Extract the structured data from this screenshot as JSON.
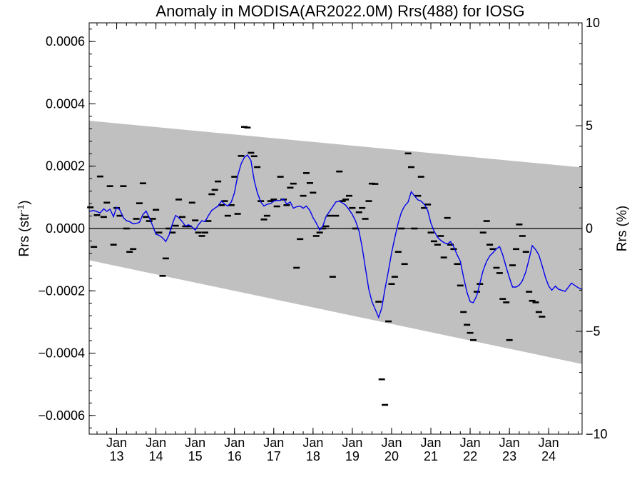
{
  "chart_data": {
    "type": "line",
    "title": "Anomaly in MODISA(AR2022.0M) Rrs(488) for IOSG",
    "ylabel_left_main": "Rrs (str",
    "ylabel_left_sup": "-1",
    "ylabel_left_close": ")",
    "ylabel_right": "Rrs (%)",
    "xlim": [
      2012.3,
      2024.85
    ],
    "ylim_left": [
      -0.00066,
      0.00066
    ],
    "ylim_right": [
      -10,
      10
    ],
    "left_ticks": [
      {
        "v": -0.0006,
        "t": "−0.0006"
      },
      {
        "v": -0.0004,
        "t": "−0.0004"
      },
      {
        "v": -0.0002,
        "t": "−0.0002"
      },
      {
        "v": 0,
        "t": "0.0000"
      },
      {
        "v": 0.0002,
        "t": "0.0002"
      },
      {
        "v": 0.0004,
        "t": "0.0004"
      },
      {
        "v": 0.0006,
        "t": "0.0006"
      }
    ],
    "right_ticks": [
      {
        "v": -10,
        "t": "−10"
      },
      {
        "v": -5,
        "t": "−5"
      },
      {
        "v": 0,
        "t": "0"
      },
      {
        "v": 5,
        "t": "5"
      },
      {
        "v": 10,
        "t": "10"
      }
    ],
    "x_ticks": [
      {
        "x": 2013,
        "month": "Jan",
        "year": "13"
      },
      {
        "x": 2014,
        "month": "Jan",
        "year": "14"
      },
      {
        "x": 2015,
        "month": "Jan",
        "year": "15"
      },
      {
        "x": 2016,
        "month": "Jan",
        "year": "16"
      },
      {
        "x": 2017,
        "month": "Jan",
        "year": "17"
      },
      {
        "x": 2018,
        "month": "Jan",
        "year": "18"
      },
      {
        "x": 2019,
        "month": "Jan",
        "year": "19"
      },
      {
        "x": 2020,
        "month": "Jan",
        "year": "20"
      },
      {
        "x": 2021,
        "month": "Jan",
        "year": "21"
      },
      {
        "x": 2022,
        "month": "Jan",
        "year": "22"
      },
      {
        "x": 2023,
        "month": "Jan",
        "year": "23"
      },
      {
        "x": 2024,
        "month": "Jan",
        "year": "24"
      }
    ],
    "band": {
      "x": [
        2012.3,
        2024.85
      ],
      "upper": [
        0.000346,
        0.000196
      ],
      "lower": [
        -0.000102,
        -0.000435
      ]
    },
    "zero_line": 0,
    "points": [
      [
        2012.33,
        6.8e-05
      ],
      [
        2012.42,
        -5.9e-05
      ],
      [
        2012.5,
        4.3e-05
      ],
      [
        2012.58,
        0.000167
      ],
      [
        2012.67,
        3.7e-05
      ],
      [
        2012.75,
        8.3e-05
      ],
      [
        2012.83,
        0.000136
      ],
      [
        2012.92,
        -5.2e-05
      ],
      [
        2013.0,
        6.6e-05
      ],
      [
        2013.08,
        4.1e-05
      ],
      [
        2013.17,
        0.000136
      ],
      [
        2013.25,
        0.0
      ],
      [
        2013.33,
        -7.5e-05
      ],
      [
        2013.42,
        -6.6e-05
      ],
      [
        2013.5,
        3.1e-05
      ],
      [
        2013.58,
        8.1e-05
      ],
      [
        2013.67,
        0.000145
      ],
      [
        2013.75,
        3.7e-05
      ],
      [
        2013.83,
        2.4e-05
      ],
      [
        2013.92,
        3.1e-05
      ],
      [
        2014.0,
        6e-05
      ],
      [
        2014.08,
        -1.3e-05
      ],
      [
        2014.17,
        -0.000152
      ],
      [
        2014.25,
        -9.6e-05
      ],
      [
        2014.33,
        0.0
      ],
      [
        2014.42,
        -1.3e-05
      ],
      [
        2014.5,
        9e-06
      ],
      [
        2014.58,
        9.3e-05
      ],
      [
        2014.67,
        3.7e-05
      ],
      [
        2014.75,
        7e-06
      ],
      [
        2014.83,
        7e-06
      ],
      [
        2014.92,
        8.3e-05
      ],
      [
        2015.0,
        2.6e-05
      ],
      [
        2015.08,
        -1.3e-05
      ],
      [
        2015.17,
        -2.4e-05
      ],
      [
        2015.25,
        -1.3e-05
      ],
      [
        2015.33,
        2.4e-05
      ],
      [
        2015.42,
        0.00011
      ],
      [
        2015.5,
        0.000124
      ],
      [
        2015.58,
        0.000151
      ],
      [
        2015.67,
        7.5e-05
      ],
      [
        2015.75,
        8.8e-05
      ],
      [
        2015.83,
        4.1e-05
      ],
      [
        2015.92,
        7.5e-05
      ],
      [
        2016.0,
        0.000166
      ],
      [
        2016.08,
        4.7e-05
      ],
      [
        2016.17,
        0.000233
      ],
      [
        2016.25,
        0.000326
      ],
      [
        2016.33,
        0.000324
      ],
      [
        2016.42,
        0.000243
      ],
      [
        2016.5,
        0.000232
      ],
      [
        2016.58,
        0.000197
      ],
      [
        2016.67,
        8.8e-05
      ],
      [
        2016.75,
        2.9e-05
      ],
      [
        2016.83,
        4.1e-05
      ],
      [
        2016.92,
        8.8e-05
      ],
      [
        2017.0,
        9.3e-05
      ],
      [
        2017.08,
        7.1e-05
      ],
      [
        2017.17,
        0.000166
      ],
      [
        2017.25,
        9.3e-05
      ],
      [
        2017.33,
        7.5e-05
      ],
      [
        2017.42,
        0.000131
      ],
      [
        2017.5,
        0.000144
      ],
      [
        2017.58,
        -0.000126
      ],
      [
        2017.67,
        -3.4e-05
      ],
      [
        2017.75,
        0.000105
      ],
      [
        2017.83,
        0.000178
      ],
      [
        2017.92,
        0.000146
      ],
      [
        2018.0,
        0.000115
      ],
      [
        2018.08,
        -2.4e-05
      ],
      [
        2018.17,
        -1.3e-05
      ],
      [
        2018.25,
        0.0
      ],
      [
        2018.33,
        7e-06
      ],
      [
        2018.42,
        4.1e-05
      ],
      [
        2018.5,
        -0.000155
      ],
      [
        2018.58,
        4.1e-05
      ],
      [
        2018.67,
        0.000183
      ],
      [
        2018.75,
        8.8e-05
      ],
      [
        2018.83,
        9.3e-05
      ],
      [
        2018.92,
        0.000105
      ],
      [
        2019.0,
        6.6e-05
      ],
      [
        2019.08,
        0.0
      ],
      [
        2019.17,
        5.2e-05
      ],
      [
        2019.25,
        6.6e-05
      ],
      [
        2019.33,
        3.1e-05
      ],
      [
        2019.42,
        8.8e-05
      ],
      [
        2019.5,
        0.000144
      ],
      [
        2019.58,
        0.000143
      ],
      [
        2019.67,
        -0.000235
      ],
      [
        2019.75,
        -0.000484
      ],
      [
        2019.83,
        -0.000566
      ],
      [
        2019.92,
        -0.000298
      ],
      [
        2020.0,
        -0.000178
      ],
      [
        2020.08,
        -0.000155
      ],
      [
        2020.17,
        -7.5e-05
      ],
      [
        2020.25,
        0.0
      ],
      [
        2020.33,
        -0.000114
      ],
      [
        2020.42,
        0.000241
      ],
      [
        2020.5,
        0.000197
      ],
      [
        2020.58,
        0.0
      ],
      [
        2020.67,
        0.000105
      ],
      [
        2020.75,
        0.000166
      ],
      [
        2020.83,
        6.6e-05
      ],
      [
        2020.92,
        7.7e-05
      ],
      [
        2021.0,
        -1.3e-05
      ],
      [
        2021.08,
        -4.1e-05
      ],
      [
        2021.17,
        -5.2e-05
      ],
      [
        2021.25,
        -2.4e-05
      ],
      [
        2021.33,
        -9.3e-05
      ],
      [
        2021.42,
        3.4e-05
      ],
      [
        2021.5,
        -5.2e-05
      ],
      [
        2021.58,
        -6.6e-05
      ],
      [
        2021.67,
        -0.000114
      ],
      [
        2021.75,
        -0.000183
      ],
      [
        2021.83,
        -0.000268
      ],
      [
        2021.92,
        -0.000309
      ],
      [
        2022.0,
        -0.000335
      ],
      [
        2022.08,
        -0.000358
      ],
      [
        2022.17,
        -0.000203
      ],
      [
        2022.25,
        -0.000178
      ],
      [
        2022.33,
        -1.3e-05
      ],
      [
        2022.42,
        2.4e-05
      ],
      [
        2022.5,
        -5.2e-05
      ],
      [
        2022.58,
        -6.6e-05
      ],
      [
        2022.67,
        -0.000126
      ],
      [
        2022.75,
        -0.000143
      ],
      [
        2022.83,
        -0.000226
      ],
      [
        2022.92,
        -0.000237
      ],
      [
        2023.0,
        -0.000358
      ],
      [
        2023.08,
        -0.000118
      ],
      [
        2023.17,
        -6.6e-05
      ],
      [
        2023.25,
        1.3e-05
      ],
      [
        2023.33,
        -2.4e-05
      ],
      [
        2023.42,
        -7.5e-05
      ],
      [
        2023.5,
        -0.000203
      ],
      [
        2023.58,
        -0.000232
      ],
      [
        2023.67,
        -0.000237
      ],
      [
        2023.75,
        -0.000268
      ],
      [
        2023.83,
        -0.000283
      ]
    ],
    "smooth": [
      [
        2012.3,
        5.5e-05
      ],
      [
        2012.42,
        5.8e-05
      ],
      [
        2012.58,
        5e-05
      ],
      [
        2012.67,
        6.3e-05
      ],
      [
        2012.75,
        5.5e-05
      ],
      [
        2012.83,
        6.2e-05
      ],
      [
        2012.92,
        3.8e-05
      ],
      [
        2013.0,
        6.8e-05
      ],
      [
        2013.08,
        6e-05
      ],
      [
        2013.17,
        3.5e-05
      ],
      [
        2013.25,
        2.5e-05
      ],
      [
        2013.33,
        2.2e-05
      ],
      [
        2013.42,
        1.5e-05
      ],
      [
        2013.5,
        1.6e-05
      ],
      [
        2013.58,
        2e-05
      ],
      [
        2013.67,
        4.5e-05
      ],
      [
        2013.75,
        5.6e-05
      ],
      [
        2013.83,
        3.5e-05
      ],
      [
        2013.92,
        8e-06
      ],
      [
        2014.0,
        -1.8e-05
      ],
      [
        2014.08,
        -2.2e-05
      ],
      [
        2014.17,
        -3e-05
      ],
      [
        2014.25,
        -4.2e-05
      ],
      [
        2014.33,
        -2.2e-05
      ],
      [
        2014.42,
        1.5e-05
      ],
      [
        2014.5,
        4.2e-05
      ],
      [
        2014.58,
        3.5e-05
      ],
      [
        2014.67,
        2.2e-05
      ],
      [
        2014.75,
        8e-06
      ],
      [
        2014.83,
        1.2e-05
      ],
      [
        2014.92,
        5e-06
      ],
      [
        2015.0,
        -5e-06
      ],
      [
        2015.08,
        1.2e-05
      ],
      [
        2015.17,
        2.5e-05
      ],
      [
        2015.25,
        2.2e-05
      ],
      [
        2015.33,
        4e-05
      ],
      [
        2015.42,
        5.8e-05
      ],
      [
        2015.5,
        6.5e-05
      ],
      [
        2015.58,
        7.2e-05
      ],
      [
        2015.67,
        8.8e-05
      ],
      [
        2015.75,
        7.8e-05
      ],
      [
        2015.83,
        7.2e-05
      ],
      [
        2015.92,
        8.5e-05
      ],
      [
        2016.0,
        0.000115
      ],
      [
        2016.08,
        0.000168
      ],
      [
        2016.17,
        0.000208
      ],
      [
        2016.25,
        0.000228
      ],
      [
        2016.33,
        0.000236
      ],
      [
        2016.42,
        0.000218
      ],
      [
        2016.5,
        0.000155
      ],
      [
        2016.58,
        0.000115
      ],
      [
        2016.67,
        8.5e-05
      ],
      [
        2016.75,
        7.2e-05
      ],
      [
        2016.83,
        7.8e-05
      ],
      [
        2016.92,
        8e-05
      ],
      [
        2017.0,
        8.8e-05
      ],
      [
        2017.08,
        9e-05
      ],
      [
        2017.17,
        9e-05
      ],
      [
        2017.25,
        9.5e-05
      ],
      [
        2017.33,
        7.8e-05
      ],
      [
        2017.42,
        8.5e-05
      ],
      [
        2017.5,
        6.5e-05
      ],
      [
        2017.58,
        7e-05
      ],
      [
        2017.67,
        7.2e-05
      ],
      [
        2017.75,
        6.5e-05
      ],
      [
        2017.83,
        7.2e-05
      ],
      [
        2017.92,
        5.8e-05
      ],
      [
        2018.0,
        3.5e-05
      ],
      [
        2018.08,
        1.8e-05
      ],
      [
        2018.17,
        -5e-06
      ],
      [
        2018.25,
        8e-06
      ],
      [
        2018.33,
        3.8e-05
      ],
      [
        2018.42,
        5.5e-05
      ],
      [
        2018.5,
        7e-05
      ],
      [
        2018.58,
        8.5e-05
      ],
      [
        2018.67,
        8.8e-05
      ],
      [
        2018.75,
        8.2e-05
      ],
      [
        2018.83,
        7.5e-05
      ],
      [
        2018.92,
        6e-05
      ],
      [
        2019.0,
        4.5e-05
      ],
      [
        2019.08,
        2.5e-05
      ],
      [
        2019.17,
        -8e-06
      ],
      [
        2019.25,
        -6e-05
      ],
      [
        2019.33,
        -0.000125
      ],
      [
        2019.42,
        -0.000195
      ],
      [
        2019.5,
        -0.000235
      ],
      [
        2019.58,
        -0.000258
      ],
      [
        2019.67,
        -0.000285
      ],
      [
        2019.75,
        -0.000255
      ],
      [
        2019.83,
        -0.000195
      ],
      [
        2019.92,
        -0.000135
      ],
      [
        2020.0,
        -7.8e-05
      ],
      [
        2020.08,
        -3e-05
      ],
      [
        2020.17,
        1.8e-05
      ],
      [
        2020.25,
        5.2e-05
      ],
      [
        2020.33,
        7.2e-05
      ],
      [
        2020.42,
        8.5e-05
      ],
      [
        2020.5,
        0.000118
      ],
      [
        2020.58,
        0.000105
      ],
      [
        2020.67,
        9.2e-05
      ],
      [
        2020.75,
        8.8e-05
      ],
      [
        2020.83,
        7.8e-05
      ],
      [
        2020.92,
        5.8e-05
      ],
      [
        2021.0,
        1.8e-05
      ],
      [
        2021.08,
        -8e-06
      ],
      [
        2021.17,
        -2.8e-05
      ],
      [
        2021.25,
        -3.8e-05
      ],
      [
        2021.33,
        -4.5e-05
      ],
      [
        2021.42,
        -5e-05
      ],
      [
        2021.5,
        -4.2e-05
      ],
      [
        2021.58,
        -5.8e-05
      ],
      [
        2021.67,
        -8.5e-05
      ],
      [
        2021.75,
        -0.000105
      ],
      [
        2021.83,
        -0.000155
      ],
      [
        2021.92,
        -0.000205
      ],
      [
        2022.0,
        -0.000235
      ],
      [
        2022.08,
        -0.000238
      ],
      [
        2022.17,
        -0.000215
      ],
      [
        2022.25,
        -0.000175
      ],
      [
        2022.33,
        -0.000135
      ],
      [
        2022.42,
        -0.000105
      ],
      [
        2022.5,
        -8.8e-05
      ],
      [
        2022.58,
        -7.8e-05
      ],
      [
        2022.67,
        -6.5e-05
      ],
      [
        2022.75,
        -5.8e-05
      ],
      [
        2022.83,
        -8.5e-05
      ],
      [
        2022.92,
        -0.000125
      ],
      [
        2023.0,
        -0.000158
      ],
      [
        2023.08,
        -0.000188
      ],
      [
        2023.17,
        -0.000188
      ],
      [
        2023.25,
        -0.000182
      ],
      [
        2023.33,
        -0.000168
      ],
      [
        2023.42,
        -0.000138
      ],
      [
        2023.5,
        -9.8e-05
      ],
      [
        2023.58,
        -5.5e-05
      ],
      [
        2023.67,
        -6.8e-05
      ],
      [
        2023.75,
        -8.5e-05
      ],
      [
        2023.83,
        -0.000118
      ],
      [
        2023.92,
        -0.000158
      ],
      [
        2024.0,
        -0.000185
      ],
      [
        2024.08,
        -0.000198
      ],
      [
        2024.17,
        -0.000185
      ],
      [
        2024.25,
        -0.000195
      ],
      [
        2024.42,
        -0.000202
      ],
      [
        2024.58,
        -0.000175
      ],
      [
        2024.75,
        -0.00019
      ],
      [
        2024.85,
        -0.000195
      ]
    ],
    "colors": {
      "band": "#c0c0c0",
      "smooth": "#0000ee",
      "points": "#000000"
    }
  }
}
